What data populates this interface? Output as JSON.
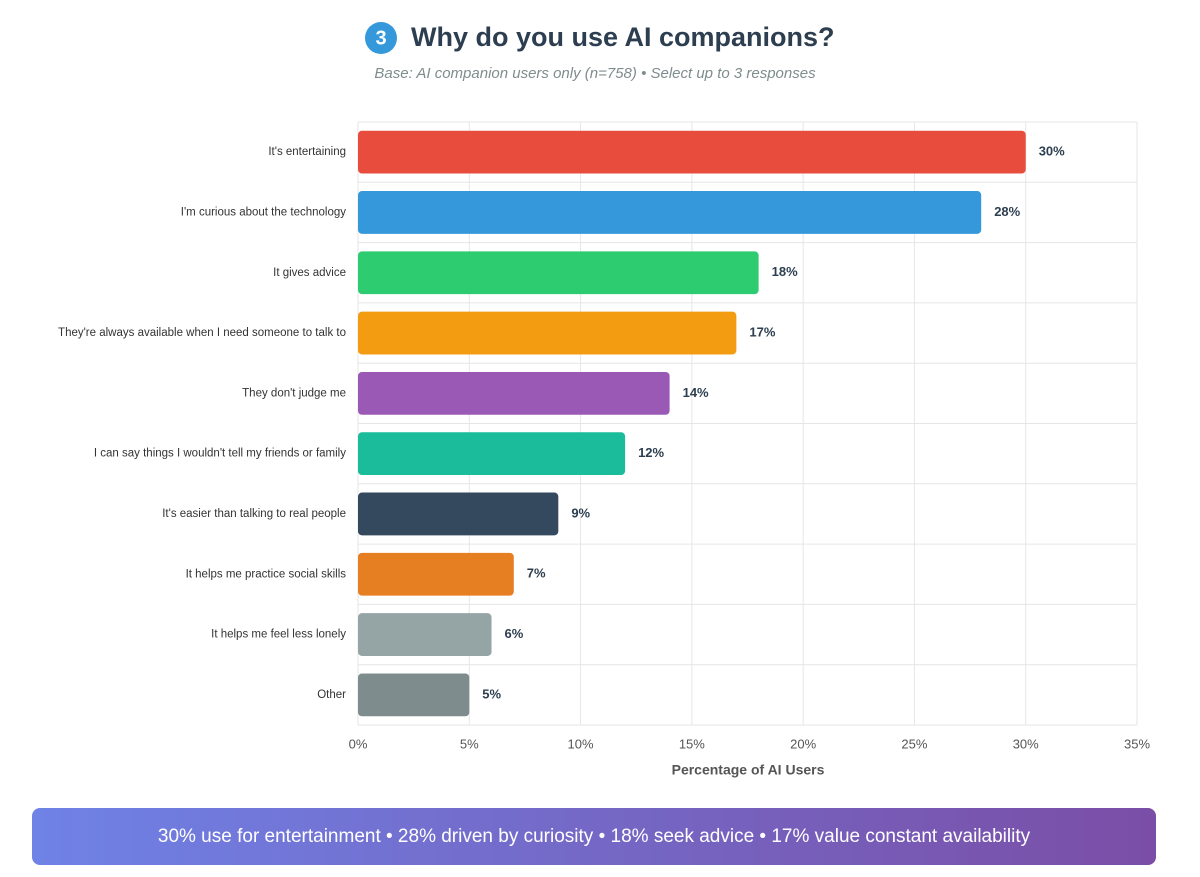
{
  "chart_data": {
    "type": "bar",
    "orientation": "horizontal",
    "badge": "3",
    "title": "Why do you use AI companions?",
    "subtitle": "Base: AI companion users only (n=758) • Select up to 3 responses",
    "x_label": "Percentage of AI Users",
    "categories": [
      "It's entertaining",
      "I'm curious about the technology",
      "It gives advice",
      "They're always available when I need someone to talk to",
      "They don't judge me",
      "I can say things I wouldn't tell my friends or family",
      "It's easier than talking to real people",
      "It helps me practice social skills",
      "It helps me feel less lonely",
      "Other"
    ],
    "values": [
      30,
      28,
      18,
      17,
      14,
      12,
      9,
      7,
      6,
      5
    ],
    "value_labels": [
      "30%",
      "28%",
      "18%",
      "17%",
      "14%",
      "12%",
      "9%",
      "7%",
      "6%",
      "5%"
    ],
    "colors": [
      "#e74c3c",
      "#3498db",
      "#2ecc71",
      "#f39c12",
      "#9b59b6",
      "#1abc9c",
      "#34495e",
      "#e67e22",
      "#95a5a6",
      "#7f8c8d"
    ],
    "xlim": [
      0,
      35
    ],
    "xticks": [
      {
        "value": 0,
        "label": "0%"
      },
      {
        "value": 5,
        "label": "5%"
      },
      {
        "value": 10,
        "label": "10%"
      },
      {
        "value": 15,
        "label": "15%"
      },
      {
        "value": 20,
        "label": "20%"
      },
      {
        "value": 25,
        "label": "25%"
      },
      {
        "value": 30,
        "label": "30%"
      },
      {
        "value": 35,
        "label": "35%"
      }
    ],
    "grid": true,
    "footer": "30% use for entertainment • 28% driven by curiosity • 18% seek advice • 17% value constant availability"
  }
}
